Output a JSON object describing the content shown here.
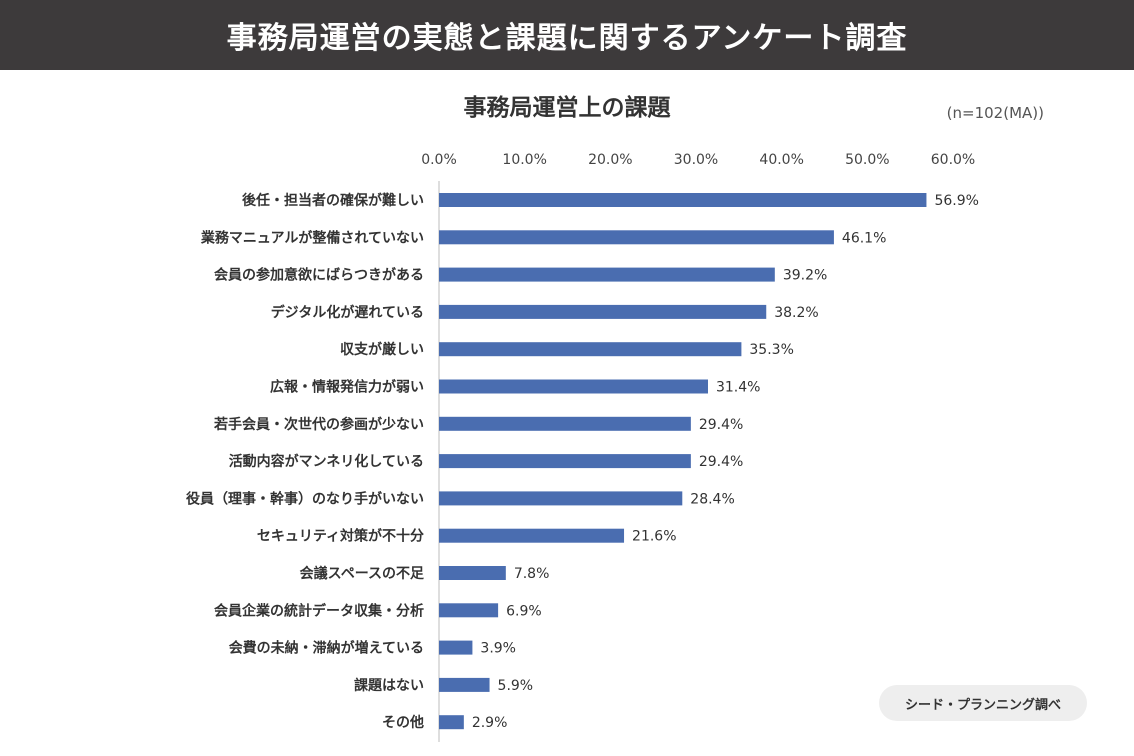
{
  "header": {
    "title": "事務局運営の実態と課題に関するアンケート調査"
  },
  "chart_note": "(n=102(MA))",
  "credit": "シード・プランニング調べ",
  "colors": {
    "bar": "#4a6db0",
    "header_bg": "#3d3a3b"
  },
  "chart_data": {
    "type": "bar",
    "orientation": "horizontal",
    "title": "事務局運営上の課題",
    "xlim": [
      0,
      60
    ],
    "x_ticks": [
      "0.0%",
      "10.0%",
      "20.0%",
      "30.0%",
      "40.0%",
      "50.0%",
      "60.0%"
    ],
    "categories": [
      "後任・担当者の確保が難しい",
      "業務マニュアルが整備されていない",
      "会員の参加意欲にばらつきがある",
      "デジタル化が遅れている",
      "収支が厳しい",
      "広報・情報発信力が弱い",
      "若手会員・次世代の参画が少ない",
      "活動内容がマンネリ化している",
      "役員（理事・幹事）のなり手がいない",
      "セキュリティ対策が不十分",
      "会議スペースの不足",
      "会員企業の統計データ収集・分析",
      "会費の未納・滞納が増えている",
      "課題はない",
      "その他"
    ],
    "values": [
      56.9,
      46.1,
      39.2,
      38.2,
      35.3,
      31.4,
      29.4,
      29.4,
      28.4,
      21.6,
      7.8,
      6.9,
      3.9,
      5.9,
      2.9
    ],
    "value_labels": [
      "56.9%",
      "46.1%",
      "39.2%",
      "38.2%",
      "35.3%",
      "31.4%",
      "29.4%",
      "29.4%",
      "28.4%",
      "21.6%",
      "7.8%",
      "6.9%",
      "3.9%",
      "5.9%",
      "2.9%"
    ]
  }
}
